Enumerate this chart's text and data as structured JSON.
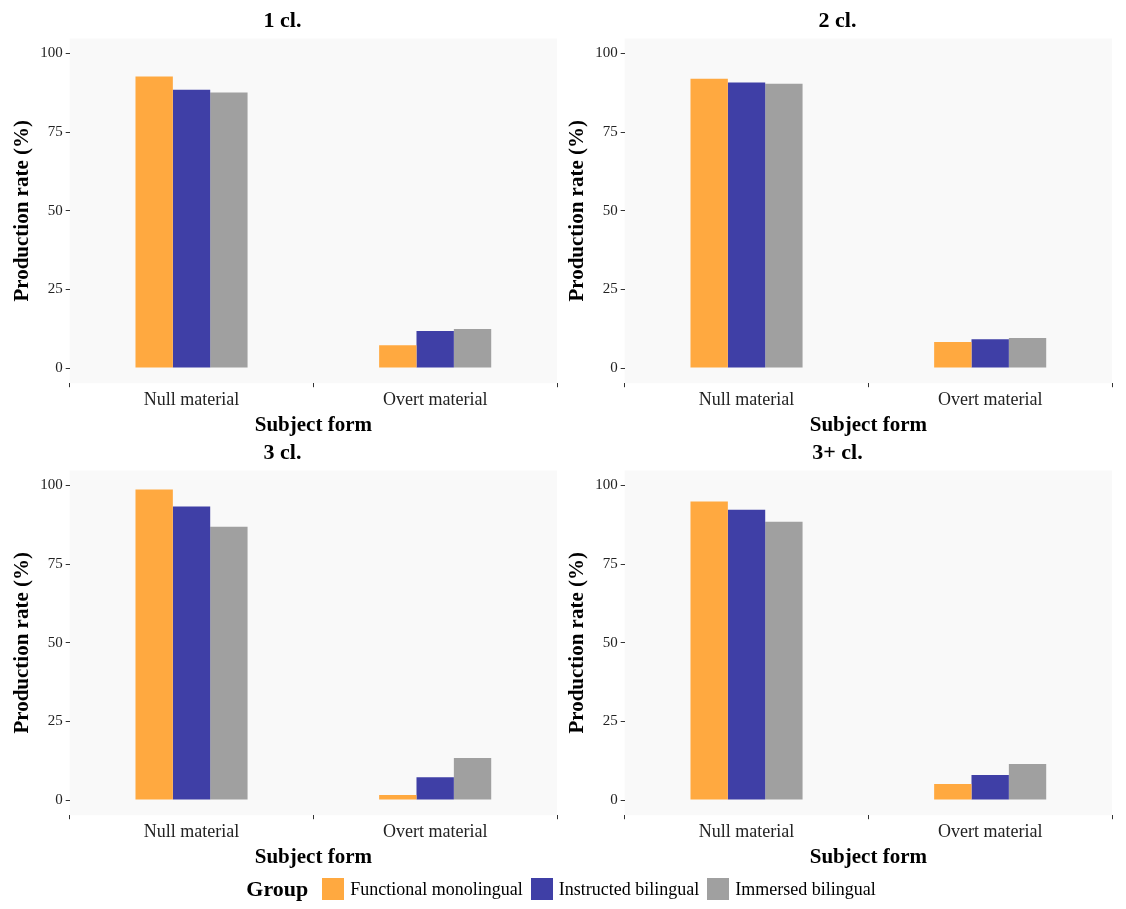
{
  "chart_data": [
    {
      "type": "bar",
      "title": "1 cl.",
      "xlabel": "Subject form",
      "ylabel": "Production rate (%)",
      "categories": [
        "Null material",
        "Overt material"
      ],
      "ylim": [
        -4.8,
        104.8
      ],
      "yticks": [
        0,
        25,
        50,
        75,
        100
      ],
      "legend": "bottom",
      "legend_title": "Group",
      "series": [
        {
          "name": "Functional monolingual",
          "color": "#ffa940",
          "values": [
            92.7,
            7.3
          ]
        },
        {
          "name": "Instructed bilingual",
          "color": "#3f3fa6",
          "values": [
            88.5,
            11.8
          ]
        },
        {
          "name": "Immersed bilingual",
          "color": "#a0a0a0",
          "values": [
            87.6,
            12.4
          ]
        }
      ]
    },
    {
      "type": "bar",
      "title": "2 cl.",
      "xlabel": "Subject form",
      "ylabel": "Production rate (%)",
      "categories": [
        "Null material",
        "Overt material"
      ],
      "ylim": [
        -4.8,
        104.8
      ],
      "yticks": [
        0,
        25,
        50,
        75,
        100
      ],
      "series": [
        {
          "color": "#ffa940",
          "values": [
            92,
            8.3
          ]
        },
        {
          "color": "#3f3fa6",
          "values": [
            90.8,
            9.2
          ]
        },
        {
          "color": "#a0a0a0",
          "values": [
            90.4,
            9.6
          ]
        }
      ]
    },
    {
      "type": "bar",
      "title": "3 cl.",
      "xlabel": "Subject form",
      "ylabel": "Production rate (%)",
      "categories": [
        "Null material",
        "Overt material"
      ],
      "ylim": [
        -4.8,
        104.8
      ],
      "yticks": [
        0,
        25,
        50,
        75,
        100
      ],
      "series": [
        {
          "color": "#ffa940",
          "values": [
            98.7,
            1.6
          ]
        },
        {
          "color": "#3f3fa6",
          "values": [
            93.3,
            7.3
          ]
        },
        {
          "color": "#a0a0a0",
          "values": [
            86.9,
            13.4
          ]
        }
      ]
    },
    {
      "type": "bar",
      "title": "3+ cl.",
      "xlabel": "Subject form",
      "ylabel": "Production rate (%)",
      "categories": [
        "Null material",
        "Overt material"
      ],
      "ylim": [
        -4.8,
        104.8
      ],
      "yticks": [
        0,
        25,
        50,
        75,
        100
      ],
      "series": [
        {
          "color": "#ffa940",
          "values": [
            94.9,
            5.1
          ]
        },
        {
          "color": "#3f3fa6",
          "values": [
            92.3,
            8
          ]
        },
        {
          "color": "#a0a0a0",
          "values": [
            88.5,
            11.5
          ]
        }
      ]
    }
  ]
}
